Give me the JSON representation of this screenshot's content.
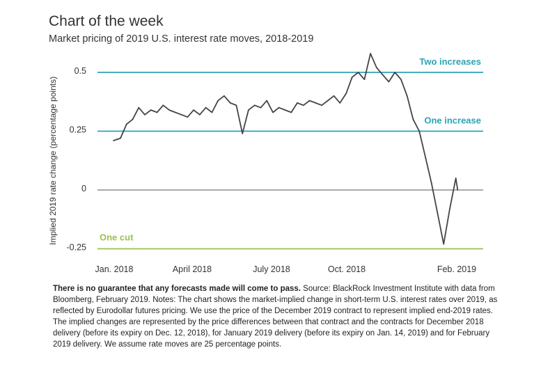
{
  "header": {
    "title": "Chart of the week",
    "subtitle": "Market pricing of 2019 U.S. interest rate moves, 2018-2019"
  },
  "chart_data": {
    "type": "line",
    "ylabel": "Implied 2019 rate change (percentage points)",
    "ylim": [
      -0.25,
      0.5
    ],
    "yticks": [
      {
        "value": 0.5,
        "label": "0.5"
      },
      {
        "value": 0.25,
        "label": "0.25"
      },
      {
        "value": 0,
        "label": "0"
      },
      {
        "value": -0.25,
        "label": "-0.25"
      }
    ],
    "xticks": [
      "Jan. 2018",
      "April 2018",
      "July 2018",
      "Oct. 2018",
      "Feb. 2019"
    ],
    "grid": false,
    "reference_lines": [
      {
        "value": 0.5,
        "label": "Two increases",
        "color": "#2ba3b5"
      },
      {
        "value": 0.25,
        "label": "One increase",
        "color": "#2ba3b5"
      },
      {
        "value": 0,
        "label": "",
        "color": "#555555"
      },
      {
        "value": -0.25,
        "label": "One cut",
        "color": "#9ac24d"
      }
    ],
    "series": [
      {
        "color": "#444444",
        "x": [
          "2018-01-02",
          "2018-01-10",
          "2018-01-17",
          "2018-01-24",
          "2018-01-31",
          "2018-02-07",
          "2018-02-14",
          "2018-02-21",
          "2018-02-28",
          "2018-03-07",
          "2018-03-14",
          "2018-03-21",
          "2018-03-28",
          "2018-04-04",
          "2018-04-11",
          "2018-04-18",
          "2018-04-25",
          "2018-05-02",
          "2018-05-09",
          "2018-05-16",
          "2018-05-23",
          "2018-05-30",
          "2018-06-06",
          "2018-06-13",
          "2018-06-20",
          "2018-06-27",
          "2018-07-04",
          "2018-07-11",
          "2018-07-18",
          "2018-07-25",
          "2018-08-01",
          "2018-08-08",
          "2018-08-15",
          "2018-08-22",
          "2018-08-29",
          "2018-09-05",
          "2018-09-12",
          "2018-09-19",
          "2018-09-26",
          "2018-10-03",
          "2018-10-10",
          "2018-10-17",
          "2018-10-24",
          "2018-10-31",
          "2018-11-07",
          "2018-11-14",
          "2018-11-21",
          "2018-11-28",
          "2018-12-05",
          "2018-12-12",
          "2018-12-19",
          "2018-12-26",
          "2019-01-02",
          "2019-01-09",
          "2019-01-16",
          "2019-01-23",
          "2019-01-30",
          "2019-02-01"
        ],
        "y": [
          0.21,
          0.22,
          0.28,
          0.3,
          0.35,
          0.32,
          0.34,
          0.33,
          0.36,
          0.34,
          0.33,
          0.32,
          0.31,
          0.34,
          0.32,
          0.35,
          0.33,
          0.38,
          0.4,
          0.37,
          0.36,
          0.24,
          0.34,
          0.36,
          0.35,
          0.38,
          0.33,
          0.35,
          0.34,
          0.33,
          0.37,
          0.36,
          0.38,
          0.37,
          0.36,
          0.38,
          0.4,
          0.37,
          0.41,
          0.48,
          0.5,
          0.47,
          0.58,
          0.52,
          0.49,
          0.46,
          0.5,
          0.47,
          0.4,
          0.3,
          0.25,
          0.14,
          0.03,
          -0.1,
          -0.23,
          -0.08,
          0.05,
          0.0
        ]
      }
    ]
  },
  "footnote": {
    "bold": "There is no guarantee that any forecasts made will come to pass.",
    "text": " Source: BlackRock Investment Institute with data from Bloomberg, February 2019. Notes: The chart shows the market-implied change in short-term U.S. interest rates over 2019, as reflected by Eurodollar futures pricing. We use the price of the December 2019 contract to represent implied end-2019 rates. The implied changes are represented by the price differences between that contract and the contracts for December 2018 delivery (before its expiry on Dec. 12, 2018), for January 2019 delivery (before its expiry on Jan. 14, 2019) and for February 2019 delivery. We assume rate moves are 25 percentage points."
  }
}
